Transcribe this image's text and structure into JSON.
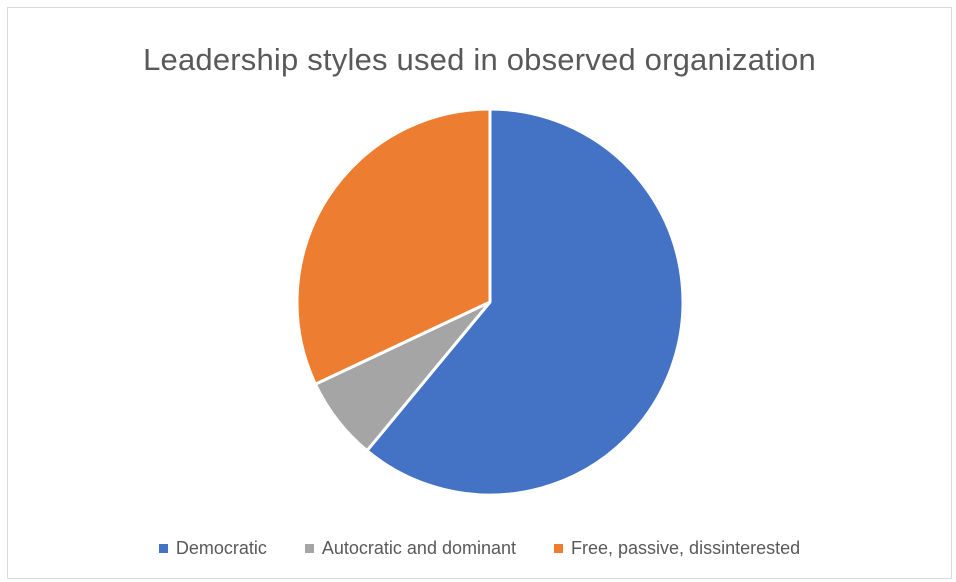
{
  "chart_data": {
    "type": "pie",
    "title": "Leadership styles used in observed organization",
    "categories": [
      "Democratic",
      "Autocratic and dominant",
      "Free, passive, dissinterested"
    ],
    "values": [
      61,
      7,
      32
    ],
    "value_unit": "percent",
    "colors": [
      "#4472c4",
      "#a5a5a5",
      "#ed7d31"
    ],
    "legend_position": "bottom",
    "start_angle_deg": 0,
    "direction": "clockwise"
  }
}
